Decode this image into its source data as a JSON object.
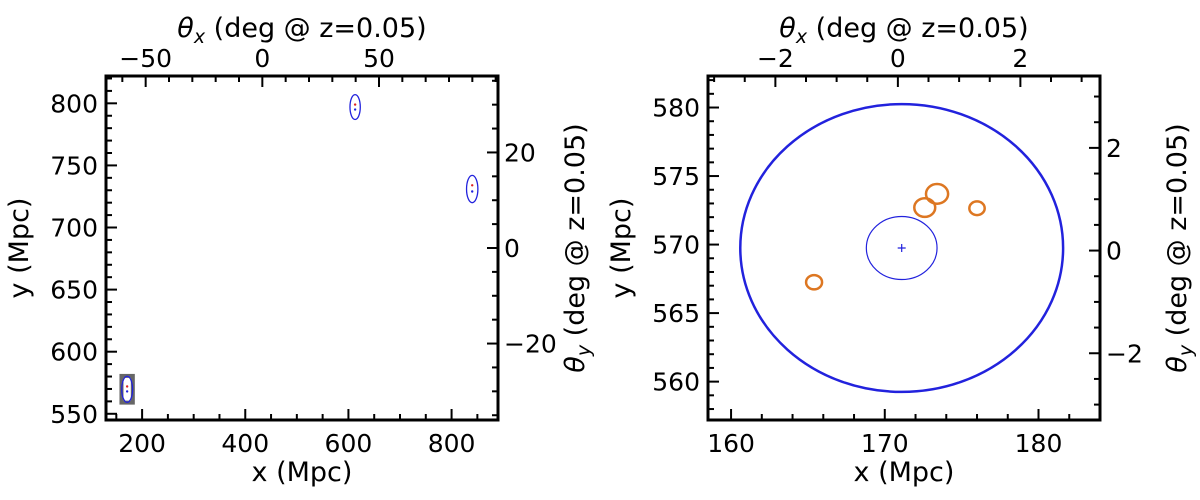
{
  "chart_data": [
    {
      "type": "scatter",
      "xlabel": "x (Mpc)",
      "ylabel": "y (Mpc)",
      "top_xlabel": "θx (deg @ z=0.05)",
      "right_ylabel": "θy (deg @ z=0.05)",
      "xlim": [
        130,
        890
      ],
      "ylim": [
        545,
        822
      ],
      "xticks": [
        200,
        400,
        600,
        800
      ],
      "yticks": [
        550,
        600,
        650,
        700,
        750,
        800
      ],
      "top_xlim": [
        -67,
        101
      ],
      "top_xticks": [
        -50,
        0,
        50
      ],
      "right_ylim": [
        -36,
        36
      ],
      "right_yticks": [
        -20,
        0,
        20
      ],
      "grid": false,
      "colors": {
        "ellipse": "#2222dd",
        "center_red": "#dd2222",
        "center_blue": "#2222dd",
        "zoom_box": "#666666"
      },
      "ellipses": [
        {
          "cx": 171,
          "cy": 569.7,
          "rx": 10.5,
          "ry": 10.5,
          "color": "#2222dd"
        },
        {
          "cx": 613,
          "cy": 797,
          "rx": 10,
          "ry": 10,
          "color": "#2222dd"
        },
        {
          "cx": 840,
          "cy": 731,
          "rx": 11,
          "ry": 11,
          "color": "#2222dd"
        }
      ],
      "points": [
        {
          "x": 171,
          "y": 572,
          "color": "#dd2222"
        },
        {
          "x": 613,
          "y": 799,
          "color": "#dd2222"
        },
        {
          "x": 840,
          "y": 734,
          "color": "#dd2222"
        },
        {
          "x": 171,
          "y": 568,
          "color": "#2222dd"
        },
        {
          "x": 613,
          "y": 795,
          "color": "#2222dd"
        },
        {
          "x": 840,
          "y": 729,
          "color": "#2222dd"
        }
      ],
      "zoom_box": {
        "x0": 160,
        "x1": 182,
        "y0": 559,
        "y1": 580.5,
        "color": "#666666"
      }
    },
    {
      "type": "scatter",
      "xlabel": "x (Mpc)",
      "ylabel": "y (Mpc)",
      "top_xlabel": "θx (deg @ z=0.05)",
      "right_ylabel": "θy (deg @ z=0.05)",
      "xlim": [
        158.5,
        184
      ],
      "ylim": [
        557.2,
        582.3
      ],
      "xticks": [
        160,
        170,
        180
      ],
      "yticks": [
        560,
        565,
        570,
        575,
        580
      ],
      "top_xlim": [
        -3.1,
        3.3
      ],
      "top_xticks": [
        -2,
        0,
        2
      ],
      "right_ylim": [
        -3.3,
        3.4
      ],
      "right_yticks": [
        -2,
        0,
        2
      ],
      "grid": false,
      "colors": {
        "big_circle": "#2222dd",
        "small_circle": "#2222dd",
        "orange": "#dd7722",
        "center": "#2222dd"
      },
      "circles": [
        {
          "cx": 171.1,
          "cy": 569.75,
          "r": 10.5,
          "color": "#2222dd",
          "width": 2.5
        },
        {
          "cx": 171.1,
          "cy": 569.75,
          "r": 2.3,
          "color": "#2222dd",
          "width": 1.2
        },
        {
          "cx": 165.4,
          "cy": 567.25,
          "r": 0.52,
          "color": "#dd7722",
          "width": 2.5
        },
        {
          "cx": 172.6,
          "cy": 572.7,
          "r": 0.68,
          "color": "#dd7722",
          "width": 2.5
        },
        {
          "cx": 173.4,
          "cy": 573.7,
          "r": 0.72,
          "color": "#dd7722",
          "width": 2.5
        },
        {
          "cx": 176.0,
          "cy": 572.65,
          "r": 0.5,
          "color": "#dd7722",
          "width": 2.5
        }
      ],
      "center_marker": {
        "x": 171.1,
        "y": 569.75,
        "color": "#2222dd"
      }
    }
  ]
}
